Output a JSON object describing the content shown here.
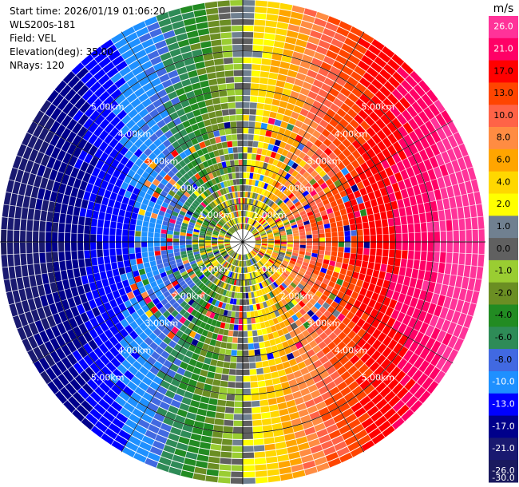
{
  "header": {
    "start_time": "Start time: 2026/01/19 01:06:20",
    "station": "WLS200s-181",
    "field": "Field: VEL",
    "elevation": "Elevation(deg): 35.00",
    "nrays": "NRays: 120"
  },
  "chart_data": {
    "type": "heatmap",
    "projection": "polar-ppi",
    "rays": 120,
    "range_rings_km": [
      1,
      2,
      3,
      4,
      5
    ],
    "ring_labels": [
      "1.00km",
      "2.00km",
      "3.00km",
      "4.00km",
      "5.00km"
    ],
    "max_range_km": 6.35,
    "colorbar": {
      "unit": "m/s",
      "levels": [
        "26.0",
        "21.0",
        "17.0",
        "13.0",
        "10.0",
        "8.0",
        "6.0",
        "4.0",
        "2.0",
        "1.0",
        "0.0",
        "-1.0",
        "-2.0",
        "-4.0",
        "-6.0",
        "-8.0",
        "-10.0",
        "-13.0",
        "-17.0",
        "-21.0",
        "-26.0",
        "-30.0"
      ],
      "colors": [
        "#ff3399",
        "#ff0066",
        "#ff0000",
        "#ff4500",
        "#ff6347",
        "#ff8c42",
        "#ffa500",
        "#ffd700",
        "#ffff00",
        "#708090",
        "#606060",
        "#9acd32",
        "#6b8e23",
        "#228b22",
        "#2e8b57",
        "#4169e1",
        "#1e90ff",
        "#0000ff",
        "#00008b",
        "#191970",
        "#1a1a5e"
      ]
    },
    "pattern": {
      "positive_direction": "east",
      "negative_direction": "west",
      "near_range_noisy": true
    }
  }
}
